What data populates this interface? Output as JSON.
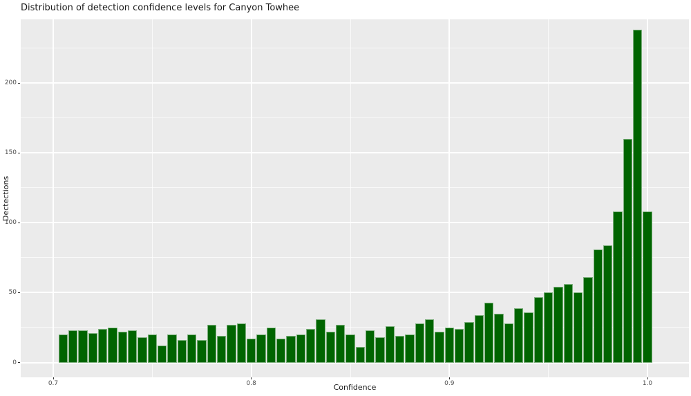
{
  "title": "Distribution of detection confidence levels for Canyon Towhee",
  "chart_data": {
    "type": "bar",
    "subtype": "histogram",
    "title": "Distribution of detection confidence levels for Canyon Towhee",
    "xlabel": "Confidence",
    "ylabel": "Dectections",
    "bin_width": 0.005,
    "bin_centers": [
      0.705,
      0.71,
      0.715,
      0.72,
      0.725,
      0.73,
      0.735,
      0.74,
      0.745,
      0.75,
      0.755,
      0.76,
      0.765,
      0.77,
      0.775,
      0.78,
      0.785,
      0.79,
      0.795,
      0.8,
      0.805,
      0.81,
      0.815,
      0.82,
      0.825,
      0.83,
      0.835,
      0.84,
      0.845,
      0.85,
      0.855,
      0.86,
      0.865,
      0.87,
      0.875,
      0.88,
      0.885,
      0.89,
      0.895,
      0.9,
      0.905,
      0.91,
      0.915,
      0.92,
      0.925,
      0.93,
      0.935,
      0.94,
      0.945,
      0.95,
      0.955,
      0.96,
      0.965,
      0.97,
      0.975,
      0.98,
      0.985,
      0.99,
      0.995,
      1.0
    ],
    "counts": [
      20,
      23,
      23,
      21,
      24,
      25,
      22,
      23,
      18,
      20,
      12,
      20,
      16,
      20,
      16,
      27,
      19,
      27,
      28,
      17,
      20,
      25,
      17,
      19,
      20,
      24,
      31,
      22,
      27,
      20,
      11,
      23,
      18,
      26,
      19,
      20,
      28,
      31,
      22,
      25,
      24,
      29,
      34,
      43,
      35,
      28,
      39,
      36,
      47,
      50,
      54,
      56,
      50,
      61,
      81,
      84,
      108,
      160,
      238,
      108
    ],
    "x_ticks": [
      "0.7",
      "0.8",
      "0.9",
      "1.0"
    ],
    "x_tick_values": [
      0.7,
      0.8,
      0.9,
      1.0
    ],
    "y_ticks": [
      "0",
      "50",
      "100",
      "150",
      "200"
    ],
    "y_tick_values": [
      0,
      50,
      100,
      150,
      200
    ],
    "xlim": [
      0.684,
      1.021
    ],
    "ylim": [
      -12,
      246
    ],
    "grid": "major-and-minor",
    "legend": false,
    "colors": {
      "bar_fill": "#006400",
      "bar_border": "#7cb07c",
      "panel_bg": "#ebebeb",
      "gridline": "#ffffff",
      "tick_text": "#4d4d4d",
      "axis_text": "#1a1a1a"
    }
  }
}
